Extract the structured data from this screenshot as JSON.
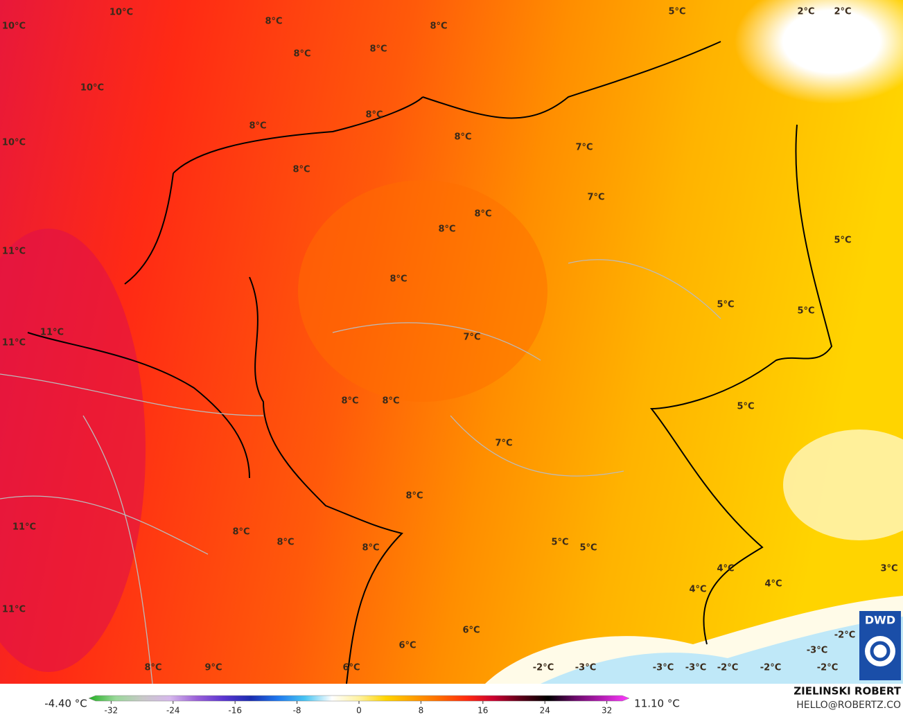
{
  "map_labels": [
    "10°C",
    "10°C",
    "8°C",
    "8°C",
    "8°C",
    "8°C",
    "5°C",
    "2°C",
    "2°C",
    "10°C",
    "8°C",
    "8°C",
    "8°C",
    "10°C",
    "7°C",
    "8°C",
    "7°C",
    "8°C",
    "8°C",
    "5°C",
    "11°C",
    "8°C",
    "5°C",
    "5°C",
    "11°C",
    "11°C",
    "7°C",
    "8°C",
    "8°C",
    "5°C",
    "7°C",
    "8°C",
    "11°C",
    "8°C",
    "8°C",
    "5°C",
    "5°C",
    "8°C",
    "4°C",
    "3°C",
    "4°C",
    "4°C",
    "11°C",
    "6°C",
    "-2°C",
    "6°C",
    "-3°C",
    "8°C",
    "9°C",
    "6°C",
    "-2°C",
    "-3°C",
    "-3°C",
    "-3°C",
    "-2°C",
    "-2°C",
    "-2°C"
  ],
  "colorbar": {
    "min_label": "-4.40 °C",
    "max_label": "11.10 °C",
    "lim": [
      -34,
      34
    ],
    "ticks": [
      -32,
      -24,
      -16,
      -8,
      0,
      8,
      16,
      24,
      32
    ],
    "colors": [
      "#22b022",
      "#9ad89a",
      "#c8c8c8",
      "#d6b8ec",
      "#9a60d8",
      "#5a34d0",
      "#1a2cb0",
      "#1e78ee",
      "#48c4f2",
      "#ffffff",
      "#fff2a0",
      "#ffd400",
      "#ffa000",
      "#ff6a00",
      "#ff2a10",
      "#c80030",
      "#5a0018",
      "#000000",
      "#6a0a6a",
      "#b41cb4",
      "#ff3cff"
    ]
  },
  "credit": {
    "name": "ZIELINSKI ROBERT",
    "contact": "HELLO@ROBERTZ.CO",
    "logo": "DWD"
  }
}
